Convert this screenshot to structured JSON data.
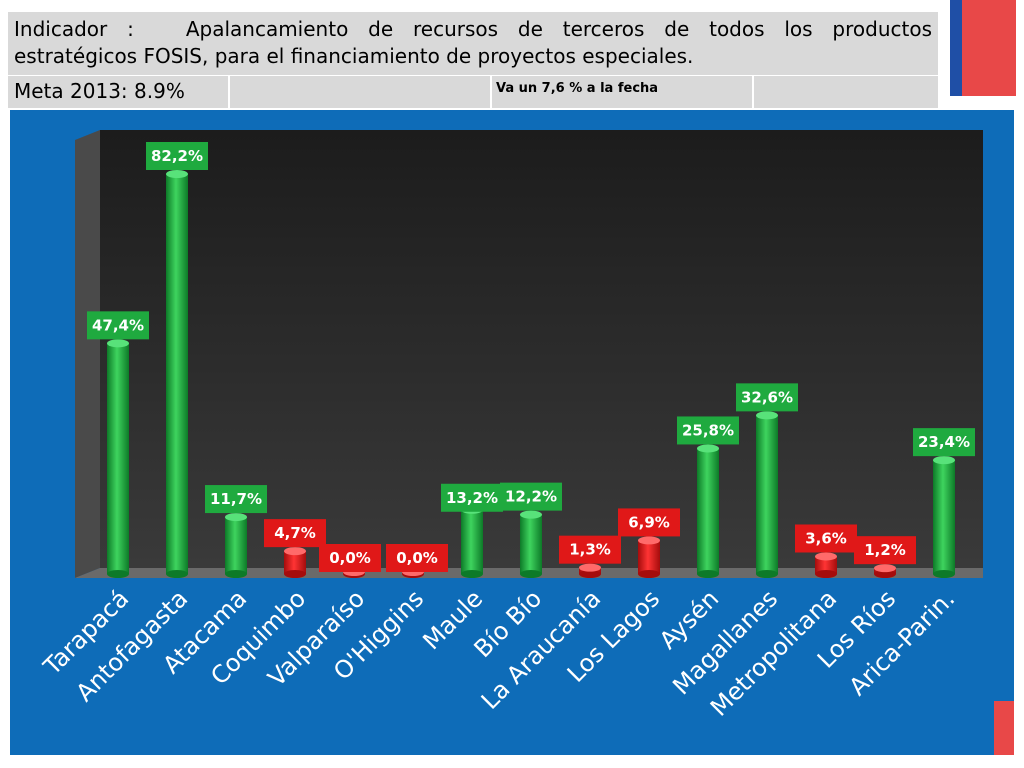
{
  "header": {
    "indicator_label": "Indicador :",
    "indicator_text": "Apalancamiento de recursos de terceros de todos los productos estratégicos FOSIS, para el financiamiento de proyectos especiales.",
    "meta": "Meta 2013: 8.9%",
    "progress": "Va un 7,6 % a la fecha"
  },
  "colors": {
    "panel_bg": "#0e6cb8",
    "plot_bg": "#2e2e2e",
    "green_bar": "#1faa3f",
    "red_bar": "#e01818",
    "flag_red": "#e84848",
    "flag_blue": "#1f4fa6"
  },
  "chart_data": {
    "type": "bar",
    "categories": [
      "Tarapacá",
      "Antofagasta",
      "Atacama",
      "Coquimbo",
      "Valparaíso",
      "O'Higgins",
      "Maule",
      "Bío Bío",
      "La Araucanía",
      "Los Lagos",
      "Aysén",
      "Magallanes",
      "Metropolitana",
      "Los Ríos",
      "Arica-Parin."
    ],
    "values": [
      47.4,
      82.2,
      11.7,
      4.7,
      0.0,
      0.0,
      13.2,
      12.2,
      1.3,
      6.9,
      25.8,
      32.6,
      3.6,
      1.2,
      23.4
    ],
    "data_labels": [
      "47,4%",
      "82,2%",
      "11,7%",
      "4,7%",
      "0,0%",
      "0,0%",
      "13,2%",
      "12,2%",
      "1,3%",
      "6,9%",
      "25,8%",
      "32,6%",
      "3,6%",
      "1,2%",
      "23,4%"
    ],
    "status": [
      "above",
      "above",
      "above",
      "below",
      "below",
      "below",
      "above",
      "above",
      "below",
      "below",
      "above",
      "above",
      "below",
      "below",
      "above"
    ],
    "ylim": [
      0,
      90
    ],
    "grid": false,
    "legend": "none"
  }
}
